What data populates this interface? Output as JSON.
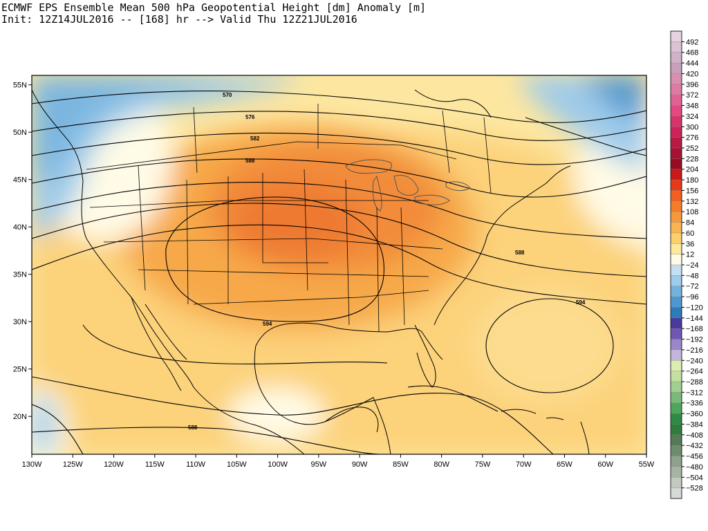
{
  "title": {
    "line1": "ECMWF EPS Ensemble Mean 500 hPa Geopotential Height [dm] Anomaly [m]",
    "line2": "Init: 12Z14JUL2016 -- [168] hr --> Valid Thu 12Z21JUL2016"
  },
  "map": {
    "lon_range": [
      -130,
      -55
    ],
    "lat_range": [
      16,
      56
    ],
    "lon_ticks": [
      "130W",
      "125W",
      "120W",
      "115W",
      "110W",
      "105W",
      "100W",
      "95W",
      "90W",
      "85W",
      "80W",
      "75W",
      "70W",
      "65W",
      "60W",
      "55W"
    ],
    "lat_ticks": [
      "55N",
      "50N",
      "45N",
      "40N",
      "35N",
      "30N",
      "25N",
      "20N"
    ],
    "contour_labels": [
      "570",
      "576",
      "582",
      "588",
      "594",
      "588",
      "594",
      "588"
    ]
  },
  "colorbar": {
    "labels": [
      "492",
      "468",
      "444",
      "420",
      "396",
      "372",
      "348",
      "324",
      "300",
      "276",
      "252",
      "228",
      "204",
      "180",
      "156",
      "132",
      "108",
      "84",
      "60",
      "36",
      "12",
      "-24",
      "-48",
      "-72",
      "-96",
      "-120",
      "-144",
      "-168",
      "-192",
      "-216",
      "-240",
      "-264",
      "-288",
      "-312",
      "-336",
      "-360",
      "-384",
      "-408",
      "-432",
      "-456",
      "-480",
      "-504",
      "-528"
    ],
    "colors": [
      "#e6d3df",
      "#dcc2d3",
      "#d2b1c7",
      "#c8a0bb",
      "#d990b0",
      "#e07aa4",
      "#e06293",
      "#e04a80",
      "#d8336c",
      "#cc2458",
      "#b81a44",
      "#a81232",
      "#960d22",
      "#c81a1a",
      "#e53a1a",
      "#f26020",
      "#f57d2a",
      "#f7993a",
      "#f9b550",
      "#fbd06c",
      "#fde99a",
      "#fffbe6",
      "#c6dff0",
      "#9ecbea",
      "#74b2de",
      "#4f97d0",
      "#2f7ab8",
      "#4a3a9c",
      "#6e58b4",
      "#9a86c8",
      "#c2b6dc",
      "#dcedb0",
      "#c2e0a0",
      "#9fd090",
      "#78bb78",
      "#4ea55c",
      "#2c8c44",
      "#2f7c3c",
      "#557a58",
      "#6f8c6e",
      "#8ea28e",
      "#a6b4a6",
      "#c2cac2",
      "#d6dad6"
    ]
  }
}
